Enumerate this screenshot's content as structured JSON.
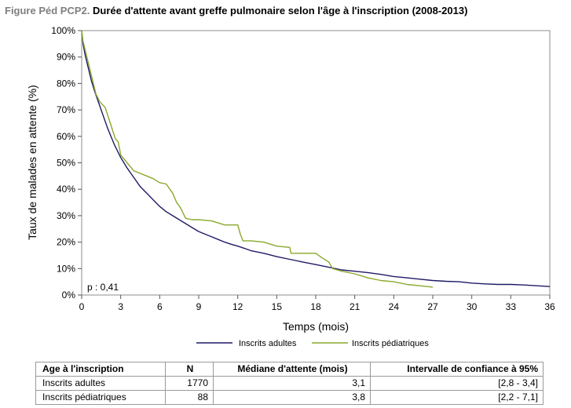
{
  "figure": {
    "prefix": "Figure Péd PCP2.",
    "title": "Durée d'attente avant greffe pulmonaire selon l'âge à l'inscription (2008-2013)"
  },
  "chart_data": {
    "type": "line",
    "xlabel": "Temps (mois)",
    "ylabel": "Taux de malades en attente (%)",
    "xlim": [
      0,
      36
    ],
    "ylim": [
      0,
      100
    ],
    "x_ticks": [
      "0",
      "3",
      "6",
      "9",
      "12",
      "15",
      "18",
      "21",
      "24",
      "27",
      "30",
      "33",
      "36"
    ],
    "y_ticks": [
      "0%",
      "10%",
      "20%",
      "30%",
      "40%",
      "50%",
      "60%",
      "70%",
      "80%",
      "90%",
      "100%"
    ],
    "grid": false,
    "legend_position": "bottom",
    "annotation": "p : 0,41",
    "series": [
      {
        "name": "Inscrits adultes",
        "color": "#1f1a66",
        "points": [
          [
            0,
            100
          ],
          [
            0.1,
            95
          ],
          [
            0.3,
            90
          ],
          [
            0.5,
            86
          ],
          [
            0.75,
            81
          ],
          [
            1,
            77
          ],
          [
            1.5,
            70
          ],
          [
            2,
            63
          ],
          [
            2.5,
            57
          ],
          [
            3,
            52
          ],
          [
            3.5,
            48
          ],
          [
            4,
            44.5
          ],
          [
            4.5,
            41
          ],
          [
            5,
            38.5
          ],
          [
            5.5,
            36
          ],
          [
            6,
            33.5
          ],
          [
            6.5,
            31.5
          ],
          [
            7,
            30
          ],
          [
            7.5,
            28.5
          ],
          [
            8,
            27
          ],
          [
            8.5,
            25.5
          ],
          [
            9,
            24
          ],
          [
            9.5,
            23
          ],
          [
            10,
            22
          ],
          [
            10.5,
            21
          ],
          [
            11,
            20
          ],
          [
            11.5,
            19.2
          ],
          [
            12,
            18.5
          ],
          [
            12.5,
            17.7
          ],
          [
            13,
            16.8
          ],
          [
            14,
            15.8
          ],
          [
            15,
            14.5
          ],
          [
            16,
            13.5
          ],
          [
            17,
            12.5
          ],
          [
            18,
            11.5
          ],
          [
            19,
            10.5
          ],
          [
            20,
            9.5
          ],
          [
            21,
            9
          ],
          [
            22,
            8.5
          ],
          [
            23,
            7.8
          ],
          [
            24,
            7
          ],
          [
            25,
            6.5
          ],
          [
            26,
            6
          ],
          [
            27,
            5.5
          ],
          [
            28,
            5.2
          ],
          [
            29,
            5
          ],
          [
            30,
            4.5
          ],
          [
            31,
            4.2
          ],
          [
            32,
            4
          ],
          [
            33,
            4
          ],
          [
            34,
            3.8
          ],
          [
            35,
            3.5
          ],
          [
            36,
            3.2
          ]
        ]
      },
      {
        "name": "Inscrits pédiatriques",
        "color": "#8aa82b",
        "points": [
          [
            0,
            100
          ],
          [
            0.1,
            96
          ],
          [
            0.3,
            92
          ],
          [
            0.5,
            88
          ],
          [
            0.8,
            82
          ],
          [
            1.1,
            76
          ],
          [
            1.4,
            73
          ],
          [
            1.8,
            71
          ],
          [
            2,
            68
          ],
          [
            2.2,
            65
          ],
          [
            2.4,
            62
          ],
          [
            2.6,
            59
          ],
          [
            2.8,
            58
          ],
          [
            3,
            53
          ],
          [
            3.5,
            50
          ],
          [
            4,
            47
          ],
          [
            4.5,
            46
          ],
          [
            5,
            45
          ],
          [
            5.5,
            44
          ],
          [
            6,
            42.5
          ],
          [
            6.5,
            42
          ],
          [
            7,
            38.5
          ],
          [
            7.3,
            35
          ],
          [
            7.6,
            33
          ],
          [
            8,
            29
          ],
          [
            8.5,
            28.5
          ],
          [
            9,
            28.5
          ],
          [
            10,
            28
          ],
          [
            11,
            26.5
          ],
          [
            11.5,
            26.5
          ],
          [
            12,
            26.5
          ],
          [
            12.2,
            23
          ],
          [
            12.4,
            20.5
          ],
          [
            13,
            20.5
          ],
          [
            14,
            20
          ],
          [
            15,
            18.5
          ],
          [
            16,
            18
          ],
          [
            16.1,
            15.8
          ],
          [
            17,
            15.8
          ],
          [
            18,
            15.8
          ],
          [
            18.5,
            14
          ],
          [
            19,
            12.5
          ],
          [
            19.3,
            10
          ],
          [
            20,
            9
          ],
          [
            21,
            8
          ],
          [
            22,
            6.5
          ],
          [
            23,
            5.5
          ],
          [
            24,
            5
          ],
          [
            25,
            4
          ],
          [
            26,
            3.5
          ],
          [
            27,
            3
          ]
        ]
      }
    ]
  },
  "table": {
    "headers": [
      "Age à l'inscription",
      "N",
      "Médiane d'attente (mois)",
      "Intervalle de confiance à 95%"
    ],
    "rows": [
      [
        "Inscrits adultes",
        "1770",
        "3,1",
        "[2,8 - 3,4]"
      ],
      [
        "Inscrits pédiatriques",
        "88",
        "3,8",
        "[2,2 - 7,1]"
      ]
    ]
  }
}
